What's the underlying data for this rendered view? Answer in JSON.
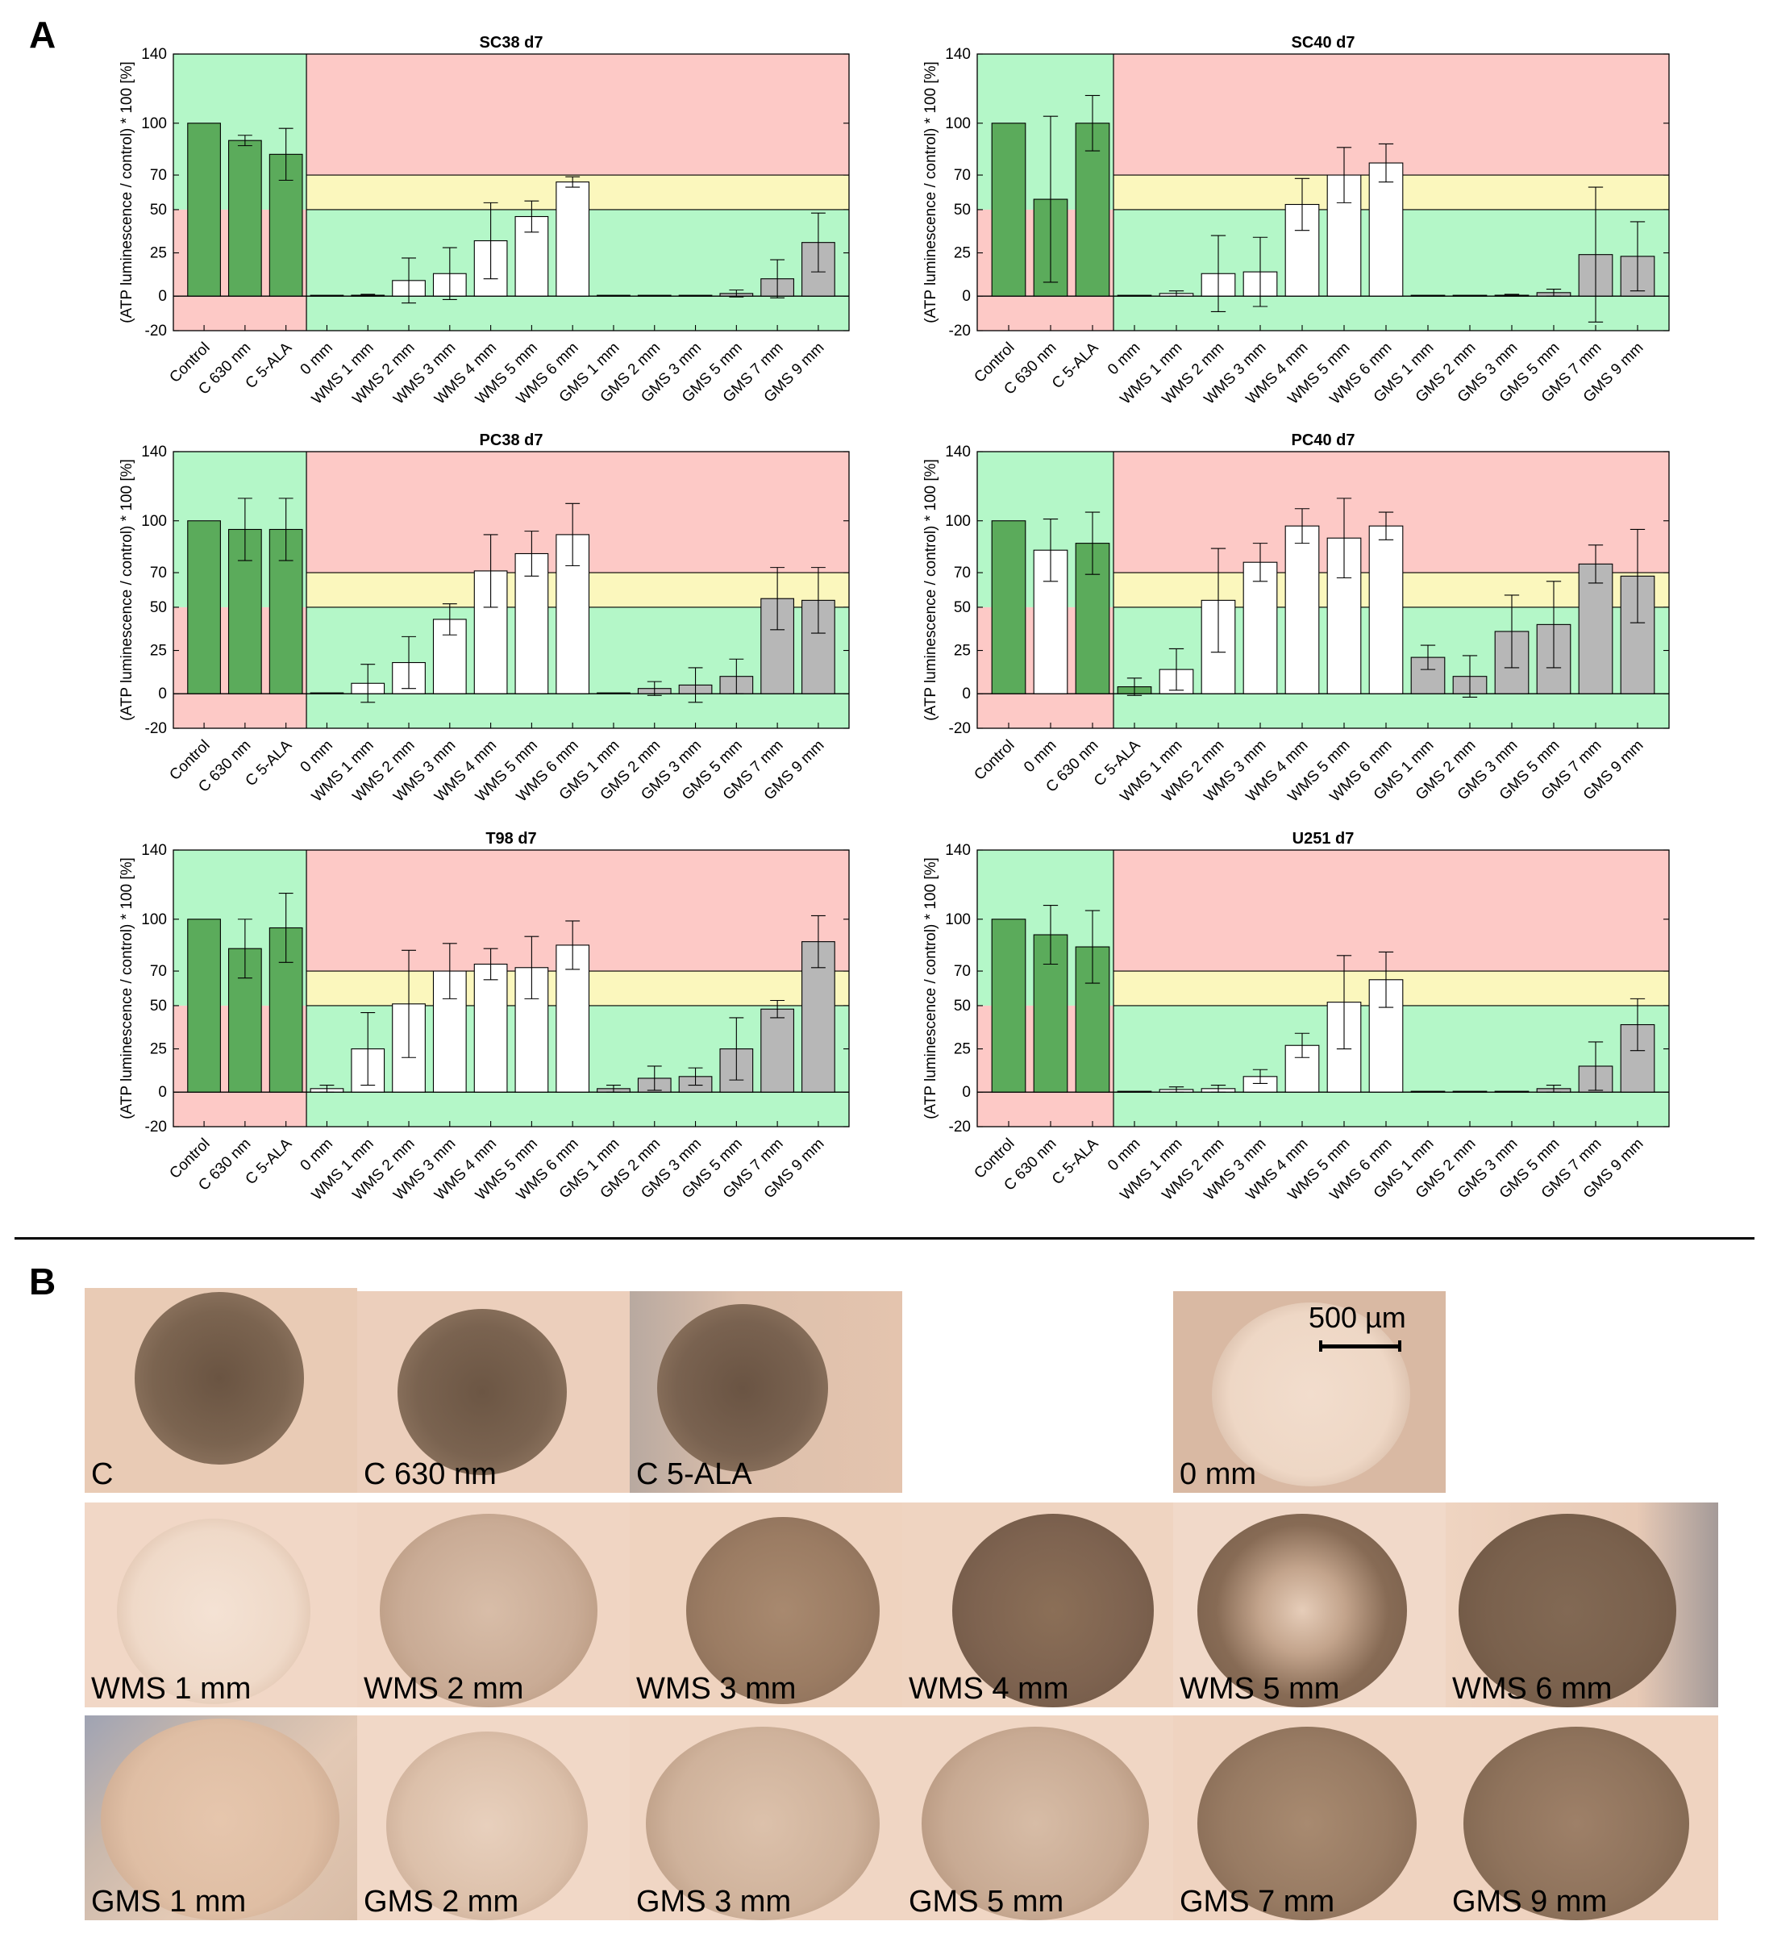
{
  "panel_a_label": "A",
  "panel_b_label": "B",
  "y_axis_label": "(ATP luminescence / control) * 100 [%]",
  "colors": {
    "control_green": "#5bab5b",
    "white_bar": "#ffffff",
    "gms_grey": "#b7b7b7",
    "zone_green": "#b4f7c8",
    "zone_red": "#fdc9c6",
    "zone_yellow": "#fbf7bd"
  },
  "chart_data": [
    {
      "type": "bar",
      "title": "SC38 d7",
      "ylim": [
        -20,
        140
      ],
      "yticks": [
        -20,
        0,
        25,
        50,
        70,
        100,
        140
      ],
      "categories": [
        "Control",
        "C 630 nm",
        "C 5-ALA",
        "0 mm",
        "WMS 1 mm",
        "WMS 2 mm",
        "WMS 3 mm",
        "WMS 4 mm",
        "WMS 5 mm",
        "WMS 6 mm",
        "GMS 1 mm",
        "GMS 2 mm",
        "GMS 3 mm",
        "GMS 5 mm",
        "GMS 7 mm",
        "GMS 9 mm"
      ],
      "values": [
        100,
        90,
        82,
        0,
        0.5,
        9,
        13,
        32,
        46,
        66,
        0,
        0,
        0,
        1.5,
        10,
        31
      ],
      "errors": [
        0,
        3,
        15,
        0,
        0.5,
        13,
        15,
        22,
        9,
        3,
        0,
        0,
        0,
        2,
        11,
        17
      ]
    },
    {
      "type": "bar",
      "title": "SC40 d7",
      "ylim": [
        -20,
        140
      ],
      "yticks": [
        -20,
        0,
        25,
        50,
        70,
        100,
        140
      ],
      "categories": [
        "Control",
        "C 630 nm",
        "C 5-ALA",
        "0 mm",
        "WMS 1 mm",
        "WMS 2 mm",
        "WMS 3 mm",
        "WMS 4 mm",
        "WMS 5 mm",
        "WMS 6 mm",
        "GMS 1 mm",
        "GMS 2 mm",
        "GMS 3 mm",
        "GMS 5 mm",
        "GMS 7 mm",
        "GMS 9 mm"
      ],
      "values": [
        100,
        56,
        100,
        0,
        1.5,
        13,
        14,
        53,
        70,
        77,
        0,
        0,
        0.5,
        2,
        24,
        23
      ],
      "errors": [
        0,
        48,
        16,
        0,
        1.5,
        22,
        20,
        15,
        16,
        11,
        0,
        0,
        0.5,
        2,
        39,
        20
      ]
    },
    {
      "type": "bar",
      "title": "PC38 d7",
      "ylim": [
        -20,
        140
      ],
      "yticks": [
        -20,
        0,
        25,
        50,
        70,
        100,
        140
      ],
      "categories": [
        "Control",
        "C 630 nm",
        "C 5-ALA",
        "0 mm",
        "WMS 1 mm",
        "WMS 2 mm",
        "WMS 3 mm",
        "WMS 4 mm",
        "WMS 5 mm",
        "WMS 6 mm",
        "GMS 1 mm",
        "GMS 2 mm",
        "GMS 3 mm",
        "GMS 5 mm",
        "GMS 7 mm",
        "GMS 9 mm"
      ],
      "values": [
        100,
        95,
        95,
        0,
        6,
        18,
        43,
        71,
        81,
        92,
        0,
        3,
        5,
        10,
        55,
        54
      ],
      "errors": [
        0,
        18,
        18,
        0,
        11,
        15,
        9,
        21,
        13,
        18,
        0,
        4,
        10,
        10,
        18,
        19
      ]
    },
    {
      "type": "bar",
      "title": "PC40 d7",
      "ylim": [
        -20,
        140
      ],
      "yticks": [
        -20,
        0,
        25,
        50,
        70,
        100,
        140
      ],
      "categories": [
        "Control",
        "0 mm",
        "C 630 nm",
        "C 5-ALA",
        "WMS 1 mm",
        "WMS 2 mm",
        "WMS 3 mm",
        "WMS 4 mm",
        "WMS 5 mm",
        "WMS 6 mm",
        "GMS 1 mm",
        "GMS 2 mm",
        "GMS 3 mm",
        "GMS 5 mm",
        "GMS 7 mm",
        "GMS 9 mm"
      ],
      "values": [
        100,
        83,
        87,
        4,
        14,
        54,
        76,
        97,
        90,
        97,
        21,
        10,
        36,
        40,
        75,
        68
      ],
      "errors": [
        0,
        18,
        18,
        5,
        12,
        30,
        11,
        10,
        23,
        8,
        7,
        12,
        21,
        25,
        11,
        27
      ]
    },
    {
      "type": "bar",
      "title": "T98 d7",
      "ylim": [
        -20,
        140
      ],
      "yticks": [
        -20,
        0,
        25,
        50,
        70,
        100,
        140
      ],
      "categories": [
        "Control",
        "C 630 nm",
        "C 5-ALA",
        "0 mm",
        "WMS 1 mm",
        "WMS 2 mm",
        "WMS 3 mm",
        "WMS 4 mm",
        "WMS 5 mm",
        "WMS 6 mm",
        "GMS 1 mm",
        "GMS 2 mm",
        "GMS 3 mm",
        "GMS 5 mm",
        "GMS 7 mm",
        "GMS 9 mm"
      ],
      "values": [
        100,
        83,
        95,
        2,
        25,
        51,
        70,
        74,
        72,
        85,
        2,
        8,
        9,
        25,
        48,
        87
      ],
      "errors": [
        0,
        17,
        20,
        2,
        21,
        31,
        16,
        9,
        18,
        14,
        2,
        7,
        5,
        18,
        5,
        15
      ]
    },
    {
      "type": "bar",
      "title": "U251 d7",
      "ylim": [
        -20,
        140
      ],
      "yticks": [
        -20,
        0,
        25,
        50,
        70,
        100,
        140
      ],
      "categories": [
        "Control",
        "C 630 nm",
        "C 5-ALA",
        "0 mm",
        "WMS 1 mm",
        "WMS 2 mm",
        "WMS 3 mm",
        "WMS 4 mm",
        "WMS 5 mm",
        "WMS 6 mm",
        "GMS 1 mm",
        "GMS 2 mm",
        "GMS 3 mm",
        "GMS 5 mm",
        "GMS 7 mm",
        "GMS 9 mm"
      ],
      "values": [
        100,
        91,
        84,
        0,
        1.5,
        2,
        9,
        27,
        52,
        65,
        0,
        0,
        0,
        2,
        15,
        39
      ],
      "errors": [
        0,
        17,
        21,
        0,
        1.5,
        2,
        4,
        7,
        27,
        16,
        0,
        0,
        0,
        2,
        14,
        15
      ]
    }
  ],
  "photos": {
    "scale_bar_label": "500 µm",
    "row1": [
      "C",
      "C 630 nm",
      "C 5-ALA",
      "0 mm"
    ],
    "row2": [
      "WMS 1 mm",
      "WMS 2 mm",
      "WMS 3 mm",
      "WMS 4 mm",
      "WMS 5 mm",
      "WMS 6 mm"
    ],
    "row3": [
      "GMS 1 mm",
      "GMS 2 mm",
      "GMS 3 mm",
      "GMS 5 mm",
      "GMS 7 mm",
      "GMS 9 mm"
    ]
  }
}
